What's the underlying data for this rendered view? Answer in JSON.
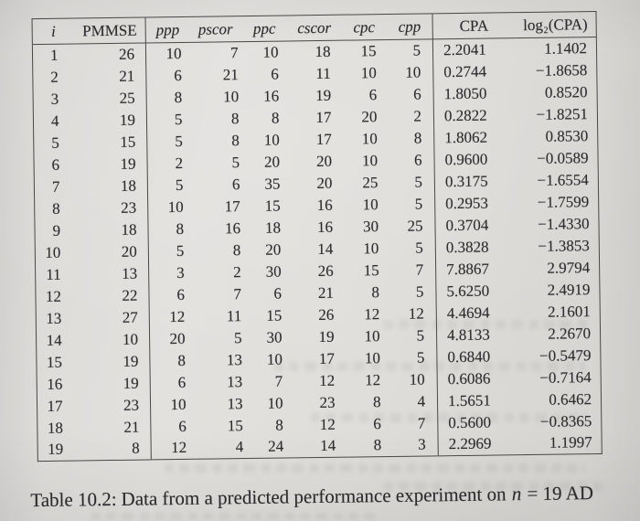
{
  "colors": {
    "paper": "#dedcd8",
    "ink": "#2d2d30",
    "line": "#4a4845"
  },
  "table": {
    "columns": [
      {
        "key": "i",
        "label": "i",
        "italic": true,
        "sep_after": false
      },
      {
        "key": "pmmse",
        "label": "PMMSE",
        "italic": false,
        "sep_after": true
      },
      {
        "key": "ppp",
        "label": "ppp",
        "italic": true,
        "sep_after": false
      },
      {
        "key": "pscor",
        "label": "pscor",
        "italic": true,
        "sep_after": false
      },
      {
        "key": "ppc",
        "label": "ppc",
        "italic": true,
        "sep_after": false
      },
      {
        "key": "cscor",
        "label": "cscor",
        "italic": true,
        "sep_after": false
      },
      {
        "key": "cpc",
        "label": "cpc",
        "italic": true,
        "sep_after": false
      },
      {
        "key": "cpp",
        "label": "cpp",
        "italic": true,
        "sep_after": true
      },
      {
        "key": "cpa",
        "label": "CPA",
        "italic": false,
        "sep_after": false
      },
      {
        "key": "log2cpa",
        "label": "log₂(CPA)",
        "italic": false,
        "sep_after": false
      }
    ],
    "rows": [
      [
        "1",
        "26",
        "10",
        "7",
        "10",
        "18",
        "15",
        "5",
        "2.2041",
        "1.1402"
      ],
      [
        "2",
        "21",
        "6",
        "21",
        "6",
        "11",
        "10",
        "10",
        "0.2744",
        "−1.8658"
      ],
      [
        "3",
        "25",
        "8",
        "10",
        "16",
        "19",
        "6",
        "6",
        "1.8050",
        "0.8520"
      ],
      [
        "4",
        "19",
        "5",
        "8",
        "8",
        "17",
        "20",
        "2",
        "0.2822",
        "−1.8251"
      ],
      [
        "5",
        "15",
        "5",
        "8",
        "10",
        "17",
        "10",
        "8",
        "1.8062",
        "0.8530"
      ],
      [
        "6",
        "19",
        "2",
        "5",
        "20",
        "20",
        "10",
        "6",
        "0.9600",
        "−0.0589"
      ],
      [
        "7",
        "18",
        "5",
        "6",
        "35",
        "20",
        "25",
        "5",
        "0.3175",
        "−1.6554"
      ],
      [
        "8",
        "23",
        "10",
        "17",
        "15",
        "16",
        "10",
        "5",
        "0.2953",
        "−1.7599"
      ],
      [
        "9",
        "18",
        "8",
        "16",
        "18",
        "16",
        "30",
        "25",
        "0.3704",
        "−1.4330"
      ],
      [
        "10",
        "20",
        "5",
        "8",
        "20",
        "14",
        "10",
        "5",
        "0.3828",
        "−1.3853"
      ],
      [
        "11",
        "13",
        "3",
        "2",
        "30",
        "26",
        "15",
        "7",
        "7.8867",
        "2.9794"
      ],
      [
        "12",
        "22",
        "6",
        "7",
        "6",
        "21",
        "8",
        "5",
        "5.6250",
        "2.4919"
      ],
      [
        "13",
        "27",
        "12",
        "11",
        "15",
        "26",
        "12",
        "12",
        "4.4694",
        "2.1601"
      ],
      [
        "14",
        "10",
        "20",
        "5",
        "30",
        "19",
        "10",
        "5",
        "4.8133",
        "2.2670"
      ],
      [
        "15",
        "19",
        "8",
        "13",
        "10",
        "17",
        "10",
        "5",
        "0.6840",
        "−0.5479"
      ],
      [
        "16",
        "19",
        "6",
        "13",
        "7",
        "12",
        "12",
        "10",
        "0.6086",
        "−0.7164"
      ],
      [
        "17",
        "23",
        "10",
        "13",
        "10",
        "23",
        "8",
        "4",
        "1.5651",
        "0.6462"
      ],
      [
        "18",
        "21",
        "6",
        "15",
        "8",
        "12",
        "6",
        "7",
        "0.5600",
        "−0.8365"
      ],
      [
        "19",
        "8",
        "12",
        "4",
        "24",
        "14",
        "8",
        "3",
        "2.2969",
        "1.1997"
      ]
    ]
  },
  "caption": {
    "prefix": "Table 10.2:",
    "body": "Data from a predicted performance experiment on",
    "math_var": "n",
    "suffix": "= 19 AD"
  }
}
